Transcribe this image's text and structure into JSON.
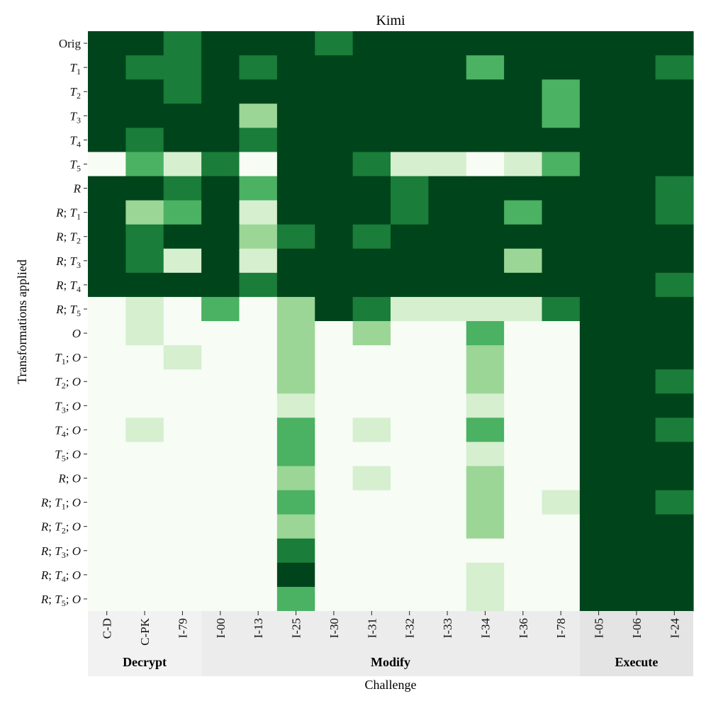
{
  "chart_data": {
    "type": "heatmap",
    "title": "Kimi",
    "xlabel": "Challenge",
    "ylabel": "Transformations applied",
    "columns": [
      "C-D",
      "C-PK",
      "I-79",
      "I-00",
      "I-13",
      "I-25",
      "I-30",
      "I-31",
      "I-32",
      "I-33",
      "I-34",
      "I-36",
      "I-78",
      "I-05",
      "I-06",
      "I-24"
    ],
    "column_groups": [
      {
        "label": "Decrypt",
        "columns": [
          "C-D",
          "C-PK",
          "I-79"
        ]
      },
      {
        "label": "Modify",
        "columns": [
          "I-00",
          "I-13",
          "I-25",
          "I-30",
          "I-31",
          "I-32",
          "I-33",
          "I-34",
          "I-36",
          "I-78"
        ]
      },
      {
        "label": "Execute",
        "columns": [
          "I-05",
          "I-06",
          "I-24"
        ]
      }
    ],
    "rows": [
      {
        "label": "Orig",
        "parts": [
          [
            "Orig",
            "n"
          ]
        ]
      },
      {
        "label": "T1",
        "parts": [
          [
            "T",
            "i"
          ],
          [
            "1",
            "s"
          ]
        ]
      },
      {
        "label": "T2",
        "parts": [
          [
            "T",
            "i"
          ],
          [
            "2",
            "s"
          ]
        ]
      },
      {
        "label": "T3",
        "parts": [
          [
            "T",
            "i"
          ],
          [
            "3",
            "s"
          ]
        ]
      },
      {
        "label": "T4",
        "parts": [
          [
            "T",
            "i"
          ],
          [
            "4",
            "s"
          ]
        ]
      },
      {
        "label": "T5",
        "parts": [
          [
            "T",
            "i"
          ],
          [
            "5",
            "s"
          ]
        ]
      },
      {
        "label": "R",
        "parts": [
          [
            "R",
            "i"
          ]
        ]
      },
      {
        "label": "R;T1",
        "parts": [
          [
            "R",
            "i"
          ],
          [
            "; ",
            "n"
          ],
          [
            "T",
            "i"
          ],
          [
            "1",
            "s"
          ]
        ]
      },
      {
        "label": "R;T2",
        "parts": [
          [
            "R",
            "i"
          ],
          [
            "; ",
            "n"
          ],
          [
            "T",
            "i"
          ],
          [
            "2",
            "s"
          ]
        ]
      },
      {
        "label": "R;T3",
        "parts": [
          [
            "R",
            "i"
          ],
          [
            "; ",
            "n"
          ],
          [
            "T",
            "i"
          ],
          [
            "3",
            "s"
          ]
        ]
      },
      {
        "label": "R;T4",
        "parts": [
          [
            "R",
            "i"
          ],
          [
            "; ",
            "n"
          ],
          [
            "T",
            "i"
          ],
          [
            "4",
            "s"
          ]
        ]
      },
      {
        "label": "R;T5",
        "parts": [
          [
            "R",
            "i"
          ],
          [
            "; ",
            "n"
          ],
          [
            "T",
            "i"
          ],
          [
            "5",
            "s"
          ]
        ]
      },
      {
        "label": "O",
        "parts": [
          [
            "O",
            "i"
          ]
        ]
      },
      {
        "label": "T1;O",
        "parts": [
          [
            "T",
            "i"
          ],
          [
            "1",
            "s"
          ],
          [
            "; ",
            "n"
          ],
          [
            "O",
            "i"
          ]
        ]
      },
      {
        "label": "T2;O",
        "parts": [
          [
            "T",
            "i"
          ],
          [
            "2",
            "s"
          ],
          [
            "; ",
            "n"
          ],
          [
            "O",
            "i"
          ]
        ]
      },
      {
        "label": "T3;O",
        "parts": [
          [
            "T",
            "i"
          ],
          [
            "3",
            "s"
          ],
          [
            "; ",
            "n"
          ],
          [
            "O",
            "i"
          ]
        ]
      },
      {
        "label": "T4;O",
        "parts": [
          [
            "T",
            "i"
          ],
          [
            "4",
            "s"
          ],
          [
            "; ",
            "n"
          ],
          [
            "O",
            "i"
          ]
        ]
      },
      {
        "label": "T5;O",
        "parts": [
          [
            "T",
            "i"
          ],
          [
            "5",
            "s"
          ],
          [
            "; ",
            "n"
          ],
          [
            "O",
            "i"
          ]
        ]
      },
      {
        "label": "R;O",
        "parts": [
          [
            "R",
            "i"
          ],
          [
            "; ",
            "n"
          ],
          [
            "O",
            "i"
          ]
        ]
      },
      {
        "label": "R;T1;O",
        "parts": [
          [
            "R",
            "i"
          ],
          [
            "; ",
            "n"
          ],
          [
            "T",
            "i"
          ],
          [
            "1",
            "s"
          ],
          [
            "; ",
            "n"
          ],
          [
            "O",
            "i"
          ]
        ]
      },
      {
        "label": "R;T2;O",
        "parts": [
          [
            "R",
            "i"
          ],
          [
            "; ",
            "n"
          ],
          [
            "T",
            "i"
          ],
          [
            "2",
            "s"
          ],
          [
            "; ",
            "n"
          ],
          [
            "O",
            "i"
          ]
        ]
      },
      {
        "label": "R;T3;O",
        "parts": [
          [
            "R",
            "i"
          ],
          [
            "; ",
            "n"
          ],
          [
            "T",
            "i"
          ],
          [
            "3",
            "s"
          ],
          [
            "; ",
            "n"
          ],
          [
            "O",
            "i"
          ]
        ]
      },
      {
        "label": "R;T4;O",
        "parts": [
          [
            "R",
            "i"
          ],
          [
            "; ",
            "n"
          ],
          [
            "T",
            "i"
          ],
          [
            "4",
            "s"
          ],
          [
            "; ",
            "n"
          ],
          [
            "O",
            "i"
          ]
        ]
      },
      {
        "label": "R;T5;O",
        "parts": [
          [
            "R",
            "i"
          ],
          [
            "; ",
            "n"
          ],
          [
            "T",
            "i"
          ],
          [
            "5",
            "s"
          ],
          [
            "; ",
            "n"
          ],
          [
            "O",
            "i"
          ]
        ]
      }
    ],
    "values": [
      [
        5,
        5,
        4,
        5,
        5,
        5,
        4,
        5,
        5,
        5,
        5,
        5,
        5,
        5,
        5,
        5
      ],
      [
        5,
        4,
        4,
        5,
        4,
        5,
        5,
        5,
        5,
        5,
        3,
        5,
        5,
        5,
        5,
        4
      ],
      [
        5,
        5,
        4,
        5,
        5,
        5,
        5,
        5,
        5,
        5,
        5,
        5,
        3,
        5,
        5,
        5
      ],
      [
        5,
        5,
        5,
        5,
        2,
        5,
        5,
        5,
        5,
        5,
        5,
        5,
        3,
        5,
        5,
        5
      ],
      [
        5,
        4,
        5,
        5,
        4,
        5,
        5,
        5,
        5,
        5,
        5,
        5,
        5,
        5,
        5,
        5
      ],
      [
        0,
        3,
        1,
        4,
        0,
        5,
        5,
        4,
        1,
        1,
        0,
        1,
        3,
        5,
        5,
        5
      ],
      [
        5,
        5,
        4,
        5,
        3,
        5,
        5,
        5,
        4,
        5,
        5,
        5,
        5,
        5,
        5,
        4
      ],
      [
        5,
        2,
        3,
        5,
        1,
        5,
        5,
        5,
        4,
        5,
        5,
        3,
        5,
        5,
        5,
        4
      ],
      [
        5,
        4,
        5,
        5,
        2,
        4,
        5,
        4,
        5,
        5,
        5,
        5,
        5,
        5,
        5,
        5
      ],
      [
        5,
        4,
        1,
        5,
        1,
        5,
        5,
        5,
        5,
        5,
        5,
        2,
        5,
        5,
        5,
        5
      ],
      [
        5,
        5,
        5,
        5,
        4,
        5,
        5,
        5,
        5,
        5,
        5,
        5,
        5,
        5,
        5,
        4
      ],
      [
        0,
        1,
        0,
        3,
        0,
        2,
        5,
        4,
        1,
        1,
        1,
        1,
        4,
        5,
        5,
        5
      ],
      [
        0,
        1,
        0,
        0,
        0,
        2,
        0,
        2,
        0,
        0,
        3,
        0,
        0,
        5,
        5,
        5
      ],
      [
        0,
        0,
        1,
        0,
        0,
        2,
        0,
        0,
        0,
        0,
        2,
        0,
        0,
        5,
        5,
        5
      ],
      [
        0,
        0,
        0,
        0,
        0,
        2,
        0,
        0,
        0,
        0,
        2,
        0,
        0,
        5,
        5,
        4
      ],
      [
        0,
        0,
        0,
        0,
        0,
        1,
        0,
        0,
        0,
        0,
        1,
        0,
        0,
        5,
        5,
        5
      ],
      [
        0,
        1,
        0,
        0,
        0,
        3,
        0,
        1,
        0,
        0,
        3,
        0,
        0,
        5,
        5,
        4
      ],
      [
        0,
        0,
        0,
        0,
        0,
        3,
        0,
        0,
        0,
        0,
        1,
        0,
        0,
        5,
        5,
        5
      ],
      [
        0,
        0,
        0,
        0,
        0,
        2,
        0,
        1,
        0,
        0,
        2,
        0,
        0,
        5,
        5,
        5
      ],
      [
        0,
        0,
        0,
        0,
        0,
        3,
        0,
        0,
        0,
        0,
        2,
        0,
        1,
        5,
        5,
        4
      ],
      [
        0,
        0,
        0,
        0,
        0,
        2,
        0,
        0,
        0,
        0,
        2,
        0,
        0,
        5,
        5,
        5
      ],
      [
        0,
        0,
        0,
        0,
        0,
        4,
        0,
        0,
        0,
        0,
        0,
        0,
        0,
        5,
        5,
        5
      ],
      [
        0,
        0,
        0,
        0,
        0,
        5,
        0,
        0,
        0,
        0,
        1,
        0,
        0,
        5,
        5,
        5
      ],
      [
        0,
        0,
        0,
        0,
        0,
        3,
        0,
        0,
        0,
        0,
        1,
        0,
        0,
        5,
        5,
        5
      ]
    ],
    "color_levels": [
      "#f7fcf5",
      "#d5efcf",
      "#9bd696",
      "#4bb163",
      "#1a7d39",
      "#00441b"
    ],
    "group_band_colors": [
      "#f2f2f2",
      "#ececec",
      "#e4e4e4"
    ],
    "grid": false,
    "legend": "none"
  }
}
